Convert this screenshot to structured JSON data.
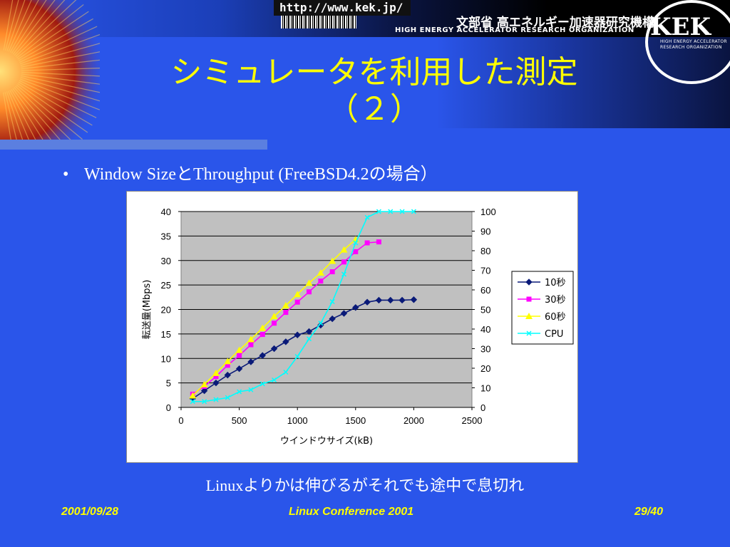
{
  "header": {
    "url": "http://www.kek.jp/",
    "org_jp": "文部省 高エネルギー加速器研究機構",
    "org_en": "HIGH ENERGY ACCELERATOR RESEARCH ORGANIZATION",
    "logo": "KEK",
    "logo_sub1": "HIGH ENERGY ACCELERATOR",
    "logo_sub2": "RESEARCH ORGANIZATION"
  },
  "title": {
    "line1": "シミュレータを利用した測定",
    "line2": "（２）"
  },
  "bullet": "Window SizeとThroughput (FreeBSD4.2の場合）",
  "caption": "Linuxよりかは伸びるがそれでも途中で息切れ",
  "footer": {
    "date": "2001/09/28",
    "conference": "Linux Conference 2001",
    "page": "29/40"
  },
  "colors": {
    "background": "#2a55ea",
    "title": "#ffff00",
    "plot_area": "#c0c0c0"
  },
  "chart_data": {
    "type": "line",
    "xlabel": "ウインドウサイズ(kB)",
    "ylabel": "転送量(Mbps)",
    "xlim": [
      0,
      2500
    ],
    "ylim": [
      0,
      40
    ],
    "y2lim": [
      0,
      100
    ],
    "xticks": [
      0,
      500,
      1000,
      1500,
      2000,
      2500
    ],
    "yticks": [
      0,
      5,
      10,
      15,
      20,
      25,
      30,
      35,
      40
    ],
    "y2ticks": [
      0,
      10,
      20,
      30,
      40,
      50,
      60,
      70,
      80,
      90,
      100
    ],
    "grid": "horizontal",
    "legend": "right",
    "series": [
      {
        "name": "10秒",
        "axis": "left",
        "color": "#0a1a78",
        "marker": "diamond",
        "x": [
          100,
          200,
          300,
          400,
          500,
          600,
          700,
          800,
          900,
          1000,
          1100,
          1200,
          1300,
          1400,
          1500,
          1600,
          1700,
          1800,
          1900,
          2000
        ],
        "y": [
          1.8,
          3.4,
          5.0,
          6.6,
          7.9,
          9.3,
          10.6,
          12.0,
          13.4,
          14.8,
          15.5,
          16.8,
          18.1,
          19.2,
          20.4,
          21.5,
          21.9,
          21.9,
          21.9,
          22.0
        ]
      },
      {
        "name": "30秒",
        "axis": "left",
        "color": "#ff00ff",
        "marker": "square",
        "x": [
          100,
          200,
          300,
          400,
          500,
          600,
          700,
          800,
          900,
          1000,
          1100,
          1200,
          1300,
          1400,
          1500,
          1600,
          1700
        ],
        "y": [
          2.7,
          4.3,
          6.3,
          8.6,
          10.6,
          12.8,
          14.9,
          17.2,
          19.4,
          21.5,
          23.6,
          25.8,
          27.7,
          29.7,
          31.8,
          33.6,
          33.8
        ]
      },
      {
        "name": "60秒",
        "axis": "left",
        "color": "#ffff00",
        "marker": "triangle",
        "x": [
          100,
          200,
          300,
          400,
          500,
          600,
          700,
          800,
          900,
          1000,
          1100,
          1200,
          1300,
          1400,
          1500
        ],
        "y": [
          2.4,
          4.7,
          7.0,
          9.4,
          11.7,
          13.9,
          16.2,
          18.6,
          20.8,
          23.1,
          25.4,
          27.5,
          29.9,
          32.2,
          34.3
        ]
      },
      {
        "name": "CPU",
        "axis": "right",
        "color": "#00ffff",
        "marker": "x",
        "x": [
          100,
          200,
          300,
          400,
          500,
          600,
          700,
          800,
          900,
          1000,
          1100,
          1200,
          1300,
          1400,
          1500,
          1600,
          1700,
          1800,
          1900,
          2000
        ],
        "y": [
          3,
          3,
          4,
          5,
          8,
          9,
          12,
          14,
          18,
          26,
          35,
          43,
          54,
          68,
          84,
          97,
          100,
          100,
          100,
          100
        ]
      }
    ]
  }
}
